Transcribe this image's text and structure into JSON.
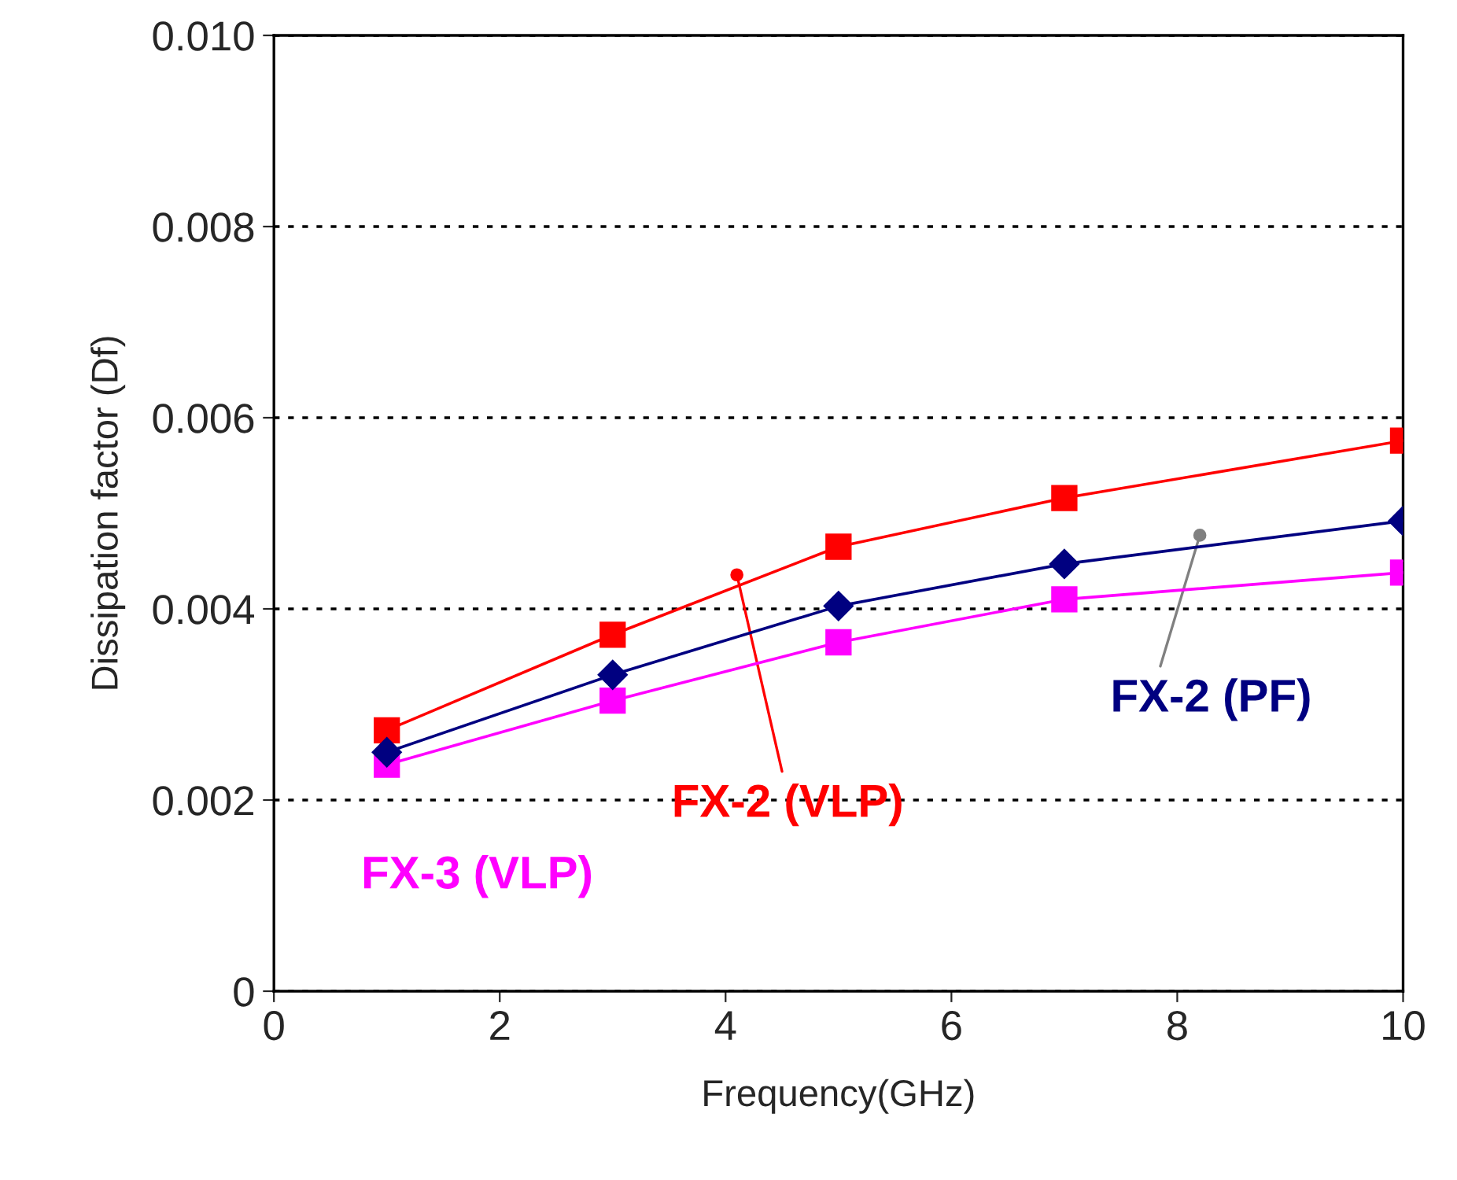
{
  "chart_data": {
    "type": "line",
    "xlabel": "Frequency(GHz)",
    "ylabel": "Dissipation factor (Df)",
    "x": [
      1,
      3,
      5,
      7,
      10
    ],
    "series": [
      {
        "name": "FX-2 (VLP)",
        "color": "#ff0000",
        "marker": "square",
        "values": [
          0.00273,
          0.00373,
          0.00465,
          0.00516,
          0.00576
        ]
      },
      {
        "name": "FX-2 (PF)",
        "color": "#000080",
        "marker": "diamond",
        "values": [
          0.0025,
          0.00331,
          0.00403,
          0.00447,
          0.00492
        ]
      },
      {
        "name": "FX-3 (VLP)",
        "color": "#ff00ff",
        "marker": "square",
        "values": [
          0.00237,
          0.00304,
          0.00365,
          0.0041,
          0.00438
        ]
      }
    ],
    "xlim": [
      0,
      10
    ],
    "xticks": [
      0,
      2,
      4,
      6,
      8,
      10
    ],
    "ylim": [
      0,
      0.01
    ],
    "yticks": [
      {
        "value": 0,
        "label": "0"
      },
      {
        "value": 0.002,
        "label": "0.002"
      },
      {
        "value": 0.004,
        "label": "0.004"
      },
      {
        "value": 0.006,
        "label": "0.006"
      },
      {
        "value": 0.008,
        "label": "0.008"
      },
      {
        "value": 0.01,
        "label": "0.010"
      }
    ],
    "grid": "y",
    "legend": false
  }
}
